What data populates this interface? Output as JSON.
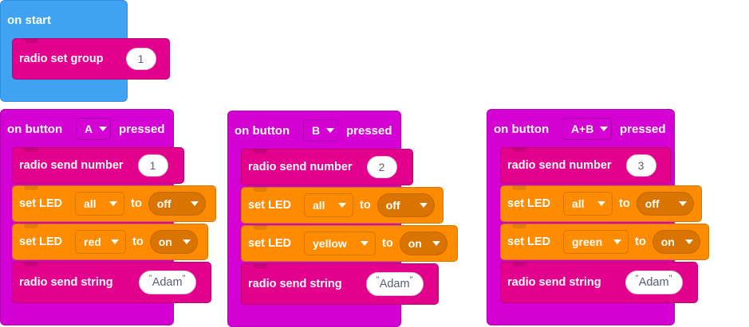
{
  "on_start": {
    "title": "on start",
    "radio_set_group_label": "radio set group",
    "group_value": "1"
  },
  "handlers": [
    {
      "title_prefix": "on button",
      "button": "A",
      "title_suffix": "pressed",
      "send_number_label": "radio send number",
      "number": "1",
      "led1_label": "set LED",
      "led1_target": "all",
      "led1_to": "to",
      "led1_state": "off",
      "led2_label": "set LED",
      "led2_target": "red",
      "led2_to": "to",
      "led2_state": "on",
      "send_string_label": "radio send string",
      "string_value": "Adam"
    },
    {
      "title_prefix": "on button",
      "button": "B",
      "title_suffix": "pressed",
      "send_number_label": "radio send number",
      "number": "2",
      "led1_label": "set LED",
      "led1_target": "all",
      "led1_to": "to",
      "led1_state": "off",
      "led2_label": "set LED",
      "led2_target": "yellow",
      "led2_to": "to",
      "led2_state": "on",
      "send_string_label": "radio send string",
      "string_value": "Adam"
    },
    {
      "title_prefix": "on button",
      "button": "A+B",
      "title_suffix": "pressed",
      "send_number_label": "radio send number",
      "number": "3",
      "led1_label": "set LED",
      "led1_target": "all",
      "led1_to": "to",
      "led1_state": "off",
      "led2_label": "set LED",
      "led2_target": "green",
      "led2_to": "to",
      "led2_state": "on",
      "send_string_label": "radio send string",
      "string_value": "Adam"
    }
  ],
  "colors": {
    "start_block": "#3fa2f3",
    "input_block": "#d400d4",
    "radio_block": "#e3008c",
    "led_block": "#ff8c00"
  }
}
